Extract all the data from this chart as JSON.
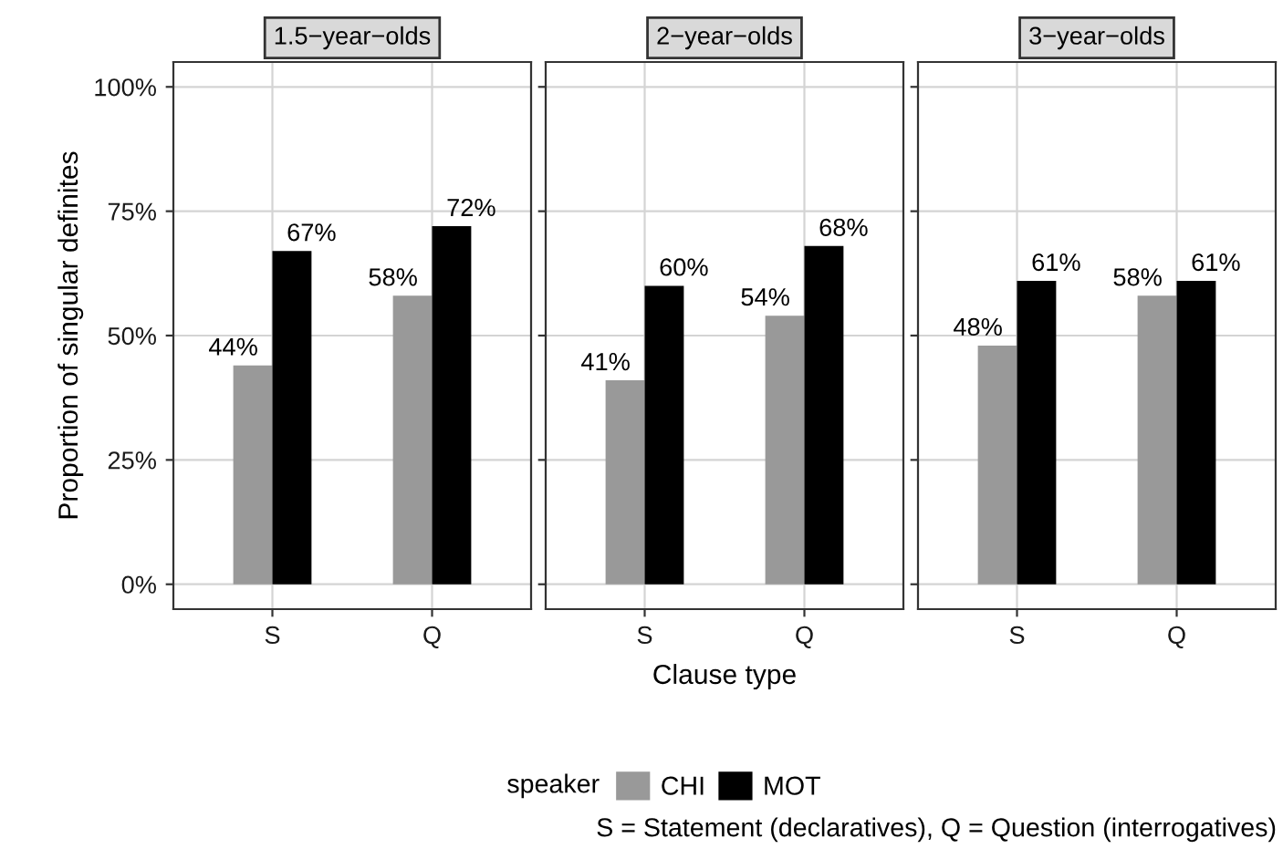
{
  "chart_data": [
    {
      "type": "bar",
      "title": "1.5−year−olds",
      "ylabel": "Proportion of singular definites",
      "legend_title": "speaker",
      "legend": "bottom",
      "categories": [
        "S",
        "Q"
      ],
      "series": [
        {
          "name": "CHI",
          "color": "#999999",
          "values": [
            44,
            58
          ],
          "value_labels": [
            "44%",
            "58%"
          ]
        },
        {
          "name": "MOT",
          "color": "#000000",
          "values": [
            67,
            72
          ],
          "value_labels": [
            "67%",
            "72%"
          ]
        }
      ],
      "ylim": [
        -5,
        105
      ],
      "yticks": [
        {
          "value": 0,
          "label": "0%"
        },
        {
          "value": 25,
          "label": "25%"
        },
        {
          "value": 50,
          "label": "50%"
        },
        {
          "value": 75,
          "label": "75%"
        },
        {
          "value": 100,
          "label": "100%"
        }
      ],
      "grid": true
    },
    {
      "type": "bar",
      "title": "2−year−olds",
      "xlabel": "Clause type",
      "categories": [
        "S",
        "Q"
      ],
      "series": [
        {
          "color": "#999999",
          "values": [
            41,
            54
          ],
          "value_labels": [
            "41%",
            "54%"
          ]
        },
        {
          "color": "#000000",
          "values": [
            60,
            68
          ],
          "value_labels": [
            "60%",
            "68%"
          ]
        }
      ],
      "ylim": [
        -5,
        105
      ],
      "yticks": [
        {
          "value": 0,
          "label": null
        },
        {
          "value": 25,
          "label": null
        },
        {
          "value": 50,
          "label": null
        },
        {
          "value": 75,
          "label": null
        },
        {
          "value": 100,
          "label": null
        }
      ],
      "grid": true,
      "tick_labels": "x"
    },
    {
      "type": "bar",
      "title": "3−year−olds",
      "annotations": [
        "S = Statement (declaratives), Q = Question (interrogatives)"
      ],
      "categories": [
        "S",
        "Q"
      ],
      "series": [
        {
          "color": "#999999",
          "values": [
            48,
            58
          ],
          "value_labels": [
            "48%",
            "58%"
          ]
        },
        {
          "color": "#000000",
          "values": [
            61,
            61
          ],
          "value_labels": [
            "61%",
            "61%"
          ]
        }
      ],
      "ylim": [
        -5,
        105
      ],
      "yticks": [
        {
          "value": 0,
          "label": null
        },
        {
          "value": 25,
          "label": null
        },
        {
          "value": 50,
          "label": null
        },
        {
          "value": 75,
          "label": null
        },
        {
          "value": 100,
          "label": null
        }
      ],
      "grid": true,
      "tick_labels": "x"
    }
  ]
}
